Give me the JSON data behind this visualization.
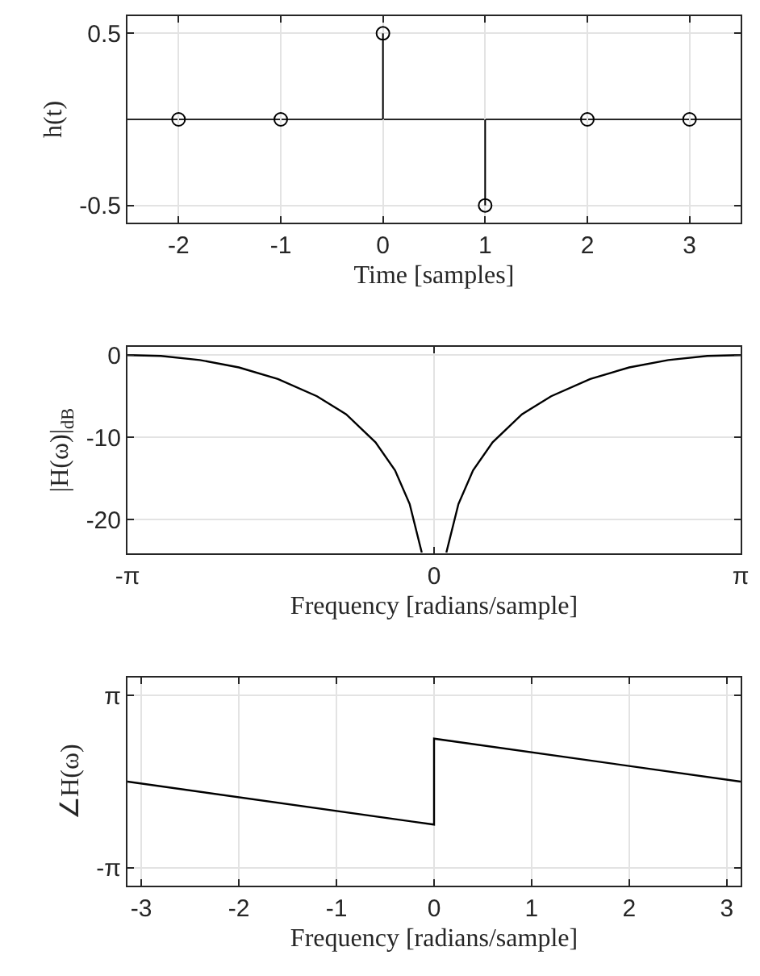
{
  "chart_data": [
    {
      "type": "lollipop",
      "xlabel": "Time [samples]",
      "ylabel": "h(t)",
      "x": [
        -2,
        -1,
        0,
        1,
        2,
        3
      ],
      "values": [
        0,
        0,
        0.5,
        -0.5,
        0,
        0
      ],
      "color": "#000000",
      "marker": "circle",
      "xlim": [
        -2.5,
        3.5
      ],
      "xticks": [
        -2,
        -1,
        0,
        1,
        2,
        3
      ],
      "ylim": [
        -0.6,
        0.6
      ],
      "yticks": [
        -0.5,
        0.5
      ],
      "grid": true,
      "ref_lines": [
        {
          "axis": "y",
          "value": 0,
          "color": "#262626"
        }
      ]
    },
    {
      "type": "line",
      "xlabel": "Frequency [radians/sample]",
      "ylabel": "|H(ω)|$_{dB}$",
      "x": [
        -3.1416,
        -2.8,
        -2.4,
        -2.0,
        -1.6,
        -1.2,
        -0.9,
        -0.6,
        -0.4,
        -0.25,
        -0.126,
        0,
        0.126,
        0.25,
        0.4,
        0.6,
        0.9,
        1.2,
        1.6,
        2.0,
        2.4,
        2.8,
        3.1416
      ],
      "values": [
        0,
        -0.1,
        -0.6,
        -1.5,
        -2.9,
        -5.0,
        -7.2,
        -10.6,
        -14.0,
        -18.1,
        -24.0,
        null,
        -24.0,
        -18.1,
        -14.0,
        -10.6,
        -7.2,
        -5.0,
        -2.9,
        -1.5,
        -0.6,
        -0.1,
        0
      ],
      "color": "#000000",
      "xlim": [
        -3.1416,
        3.1416
      ],
      "xticks": [
        {
          "value": -3.1416,
          "label": "-π"
        },
        0,
        {
          "value": 3.1416,
          "label": "π"
        }
      ],
      "ylim": [
        -24.1,
        1
      ],
      "yticks": [
        -20,
        -10,
        0
      ],
      "grid": true
    },
    {
      "type": "line",
      "xlabel": "Frequency [radians/sample]",
      "ylabel": "∠H(ω)",
      "x": [
        -3.1416,
        0,
        0,
        3.1416
      ],
      "values": [
        0,
        -1.57,
        1.57,
        0
      ],
      "color": "#000000",
      "xlim": [
        -3.1416,
        3.1416
      ],
      "xticks": [
        -3,
        -2,
        -1,
        0,
        1,
        2,
        3
      ],
      "ylim": [
        -3.8,
        3.8
      ],
      "yticks": [
        {
          "value": -3.1416,
          "label": "-π"
        },
        {
          "value": 3.1416,
          "label": "π"
        }
      ],
      "grid": true
    }
  ]
}
